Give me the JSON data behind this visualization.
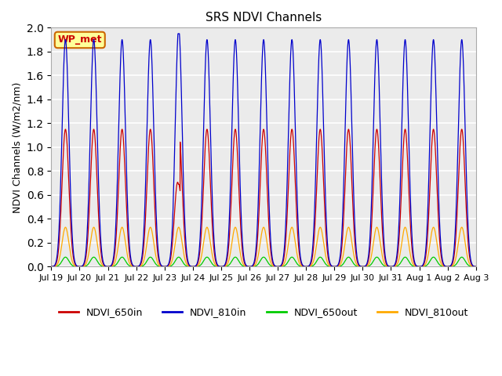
{
  "title": "SRS NDVI Channels",
  "ylabel": "NDVI Channels (W/m2/nm)",
  "ylim": [
    0.0,
    2.0
  ],
  "yticks": [
    0.0,
    0.2,
    0.4,
    0.6,
    0.8,
    1.0,
    1.2,
    1.4,
    1.6,
    1.8,
    2.0
  ],
  "x_labels": [
    "Jul 19",
    "Jul 20",
    "Jul 21",
    "Jul 22",
    "Jul 23",
    "Jul 24",
    "Jul 25",
    "Jul 26",
    "Jul 27",
    "Jul 28",
    "Jul 29",
    "Jul 30",
    "Jul 31",
    "Aug 1",
    "Aug 2",
    "Aug 3"
  ],
  "colors": {
    "NDVI_650in": "#cc0000",
    "NDVI_810in": "#0000cc",
    "NDVI_650out": "#00cc00",
    "NDVI_810out": "#ffaa00"
  },
  "legend_label": "WP_met",
  "plot_bg": "#ebebeb"
}
